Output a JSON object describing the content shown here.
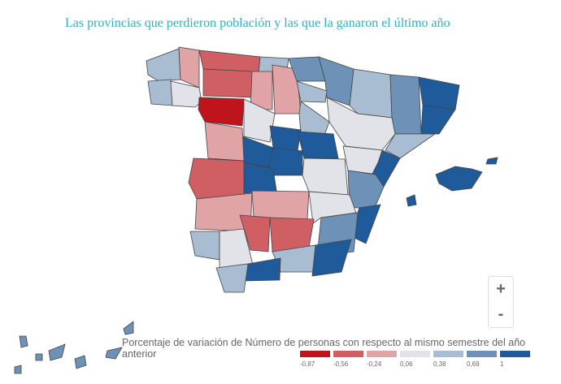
{
  "title": "Las provincias que perdieron población y las que la ganaron el último año",
  "legend": {
    "title": "Porcentaje de variación de Número de personas con respecto al mismo semestre del año anterior",
    "bins": [
      {
        "label": "-0,87",
        "color": "#c0141c"
      },
      {
        "label": "-0,56",
        "color": "#d05f64"
      },
      {
        "label": "-0,24",
        "color": "#e0a3a6"
      },
      {
        "label": "0,06",
        "color": "#e1e3e8"
      },
      {
        "label": "0,38",
        "color": "#a8bcd2"
      },
      {
        "label": "0,69",
        "color": "#6e91b8"
      },
      {
        "label": "1",
        "color": "#1f5a9b"
      }
    ]
  },
  "zoom": {
    "in": "+",
    "out": "-"
  }
}
